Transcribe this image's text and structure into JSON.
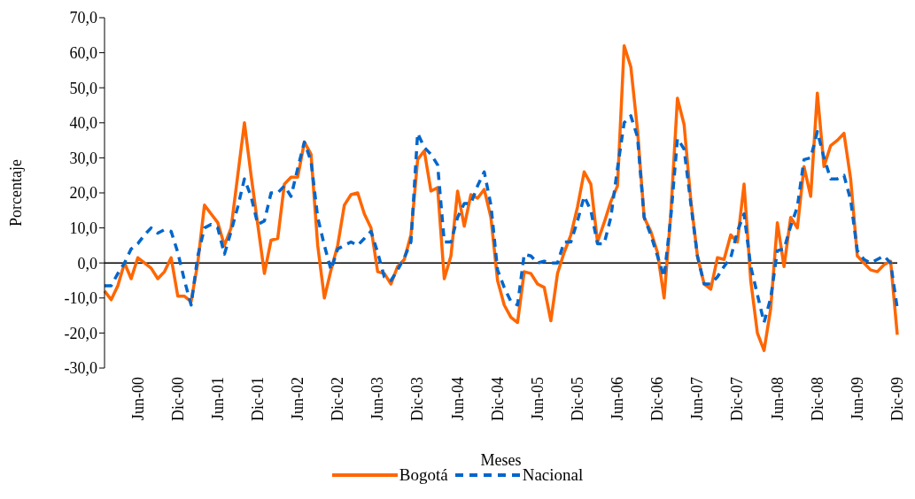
{
  "chart_data": {
    "type": "line",
    "xlabel": "Meses",
    "ylabel": "Porcentaje",
    "categories": [
      null,
      null,
      null,
      null,
      null,
      "Jun-00",
      null,
      null,
      null,
      null,
      null,
      "Dic-00",
      null,
      null,
      null,
      null,
      null,
      "Jun-01",
      null,
      null,
      null,
      null,
      null,
      "Dic-01",
      null,
      null,
      null,
      null,
      null,
      "Jun-02",
      null,
      null,
      null,
      null,
      null,
      "Dic-02",
      null,
      null,
      null,
      null,
      null,
      "Jun-03",
      null,
      null,
      null,
      null,
      null,
      "Dic-03",
      null,
      null,
      null,
      null,
      null,
      "Jun-04",
      null,
      null,
      null,
      null,
      null,
      "Dic-04",
      null,
      null,
      null,
      null,
      null,
      "Jun-05",
      null,
      null,
      null,
      null,
      null,
      "Dic-05",
      null,
      null,
      null,
      null,
      null,
      "Jun-06",
      null,
      null,
      null,
      null,
      null,
      "Dic-06",
      null,
      null,
      null,
      null,
      null,
      "Jun-07",
      null,
      null,
      null,
      null,
      null,
      "Dic-07",
      null,
      null,
      null,
      null,
      null,
      "Jun-08",
      null,
      null,
      null,
      null,
      null,
      "Dic-08",
      null,
      null,
      null,
      null,
      null,
      "Jun-09",
      null,
      null,
      null,
      null,
      null,
      "Dic-09"
    ],
    "series": [
      {
        "name": "Bogotá",
        "color": "#ff6600",
        "line_style": "solid",
        "values": [
          -8,
          -10.5,
          -6.5,
          0,
          -4.5,
          1.5,
          0,
          -1.5,
          -4.5,
          -2.5,
          1.5,
          -9.5,
          -9.5,
          -11,
          0,
          16.5,
          14,
          11.5,
          5,
          10,
          25,
          40,
          25,
          11,
          -3,
          6.5,
          7,
          22.5,
          24.5,
          24.5,
          34.5,
          31,
          5,
          -10,
          -2,
          5,
          16.5,
          19.5,
          20,
          14,
          10,
          -2.5,
          -3,
          -6,
          -1,
          1,
          8,
          29.5,
          32,
          20.5,
          21.5,
          -4.5,
          2,
          20.5,
          10.5,
          19.5,
          18.5,
          21,
          13,
          -5,
          -12,
          -15.5,
          -17,
          -2.5,
          -3,
          -6,
          -7,
          -16.5,
          -3,
          3,
          8,
          16,
          26,
          22.5,
          6,
          11.5,
          17.5,
          22,
          62,
          56,
          38,
          13,
          9,
          3,
          -10,
          14,
          47,
          39.5,
          18,
          2,
          -6,
          -7.5,
          1.5,
          1,
          8,
          6,
          22.5,
          -5,
          -20,
          -25,
          -13,
          11.5,
          -1,
          13,
          10,
          27.5,
          19,
          48.5,
          27.5,
          33.5,
          35,
          37,
          24,
          2,
          0,
          -2,
          -2.5,
          -0.5,
          0.5,
          -20.5
        ]
      },
      {
        "name": "Nacional",
        "color": "#0066cc",
        "line_style": "dashed",
        "values": [
          -6.5,
          -6.5,
          -3,
          0,
          4,
          5.5,
          8,
          10,
          8.5,
          9.5,
          9,
          3,
          -5,
          -12,
          2,
          10,
          11,
          10,
          2.5,
          9,
          16,
          24,
          19,
          11,
          12,
          20,
          20,
          22,
          19,
          27,
          34.5,
          29,
          13,
          5,
          -2,
          4,
          5,
          6,
          5,
          7,
          9,
          3,
          -4,
          -5,
          -2,
          1.5,
          6,
          37,
          33,
          31,
          28,
          6,
          6,
          13,
          17,
          17,
          22,
          26,
          16.5,
          -2,
          -7,
          -11,
          -12,
          2.5,
          2,
          0,
          0.5,
          0,
          0,
          6,
          6,
          12,
          19,
          15,
          5.5,
          5.5,
          13,
          27,
          40,
          42,
          36,
          13,
          8,
          2,
          -4,
          13,
          35.5,
          32.5,
          17,
          2,
          -6,
          -6,
          -4,
          -1,
          1.5,
          9,
          14,
          -1,
          -9,
          -17,
          -10,
          3.5,
          4,
          10.5,
          16,
          29.5,
          30,
          37.5,
          30,
          24,
          24,
          25,
          18,
          3.5,
          1,
          0,
          1,
          2,
          0,
          -13
        ]
      }
    ],
    "ylim": [
      -30,
      70
    ],
    "yticks": [
      {
        "value": -30,
        "label": "-30,0"
      },
      {
        "value": -20,
        "label": "-20,0"
      },
      {
        "value": -10,
        "label": "-10,0"
      },
      {
        "value": 0,
        "label": "0,0"
      },
      {
        "value": 10,
        "label": "10,0"
      },
      {
        "value": 20,
        "label": "20,0"
      },
      {
        "value": 30,
        "label": "30,0"
      },
      {
        "value": 40,
        "label": "40,0"
      },
      {
        "value": 50,
        "label": "50,0"
      },
      {
        "value": 60,
        "label": "60,0"
      },
      {
        "value": 70,
        "label": "70,0"
      }
    ],
    "ref_lines": [
      {
        "axis": "y",
        "value": 0,
        "color": "#000000"
      }
    ],
    "grid": false,
    "legend": "bottom"
  }
}
